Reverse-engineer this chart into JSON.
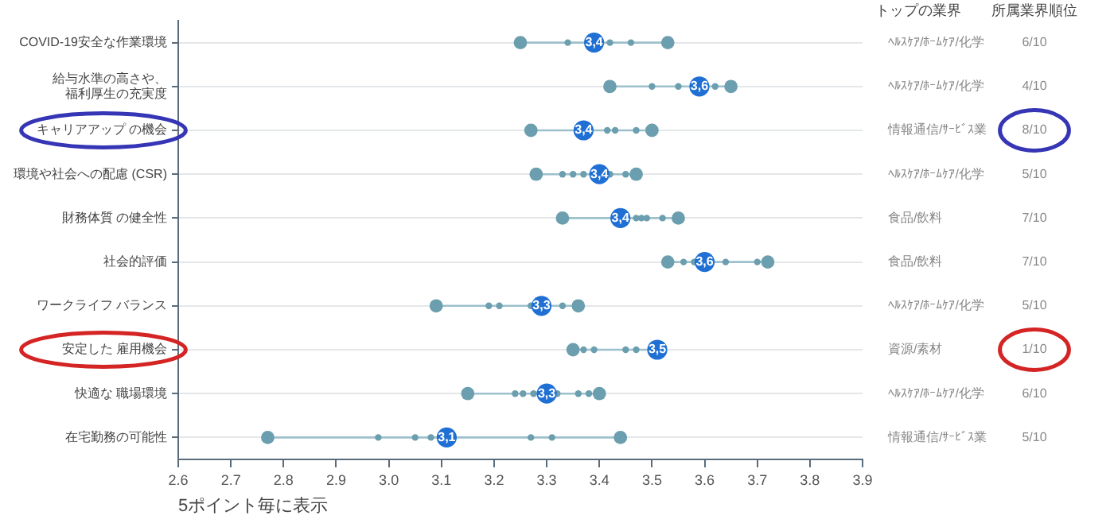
{
  "chart_data": {
    "type": "scatter",
    "orientation": "horizontal",
    "categories": [
      "COVID-19安全な作業環境",
      "給与水準の高さや、福利厚生の充実度",
      "キャリアアップ の機会",
      "環境や社会への配慮 (CSR)",
      "財務体質 の健全性",
      "社会的評価",
      "ワークライフ バランス",
      "安定した 雇用機会",
      "快適な 職場環境",
      "在宅勤務の可能性"
    ],
    "y2_categories": [
      "ﾍﾙｽｹｱ/ﾎｰﾑｹｱ/化学",
      "ﾍﾙｽｹｱ/ﾎｰﾑｹｱ/化学",
      "情報通信/ｻｰﾋﾞｽ業",
      "ﾍﾙｽｹｱ/ﾎｰﾑｹｱ/化学",
      "食品/飲料",
      "食品/飲料",
      "ﾍﾙｽｹｱ/ﾎｰﾑｹｱ/化学",
      "資源/素材",
      "ﾍﾙｽｹｱ/ﾎｰﾑｹｱ/化学",
      "情報通信/ｻｰﾋﾞｽ業"
    ],
    "y2label": "トップの業界",
    "xlabel": "5ポイント毎に表示",
    "xlim": [
      2.6,
      3.9
    ],
    "xticks": [
      2.6,
      2.7,
      2.8,
      2.9,
      {
        "value": 3,
        "label": "3.0"
      },
      3.1,
      3.2,
      3.3,
      3.4,
      3.5,
      3.6,
      3.7,
      3.8,
      3.9
    ],
    "grid": "y",
    "series": [
      {
        "color": "#6b9eae",
        "values": [
          3.25,
          3.42,
          3.27,
          3.28,
          3.33,
          3.53,
          3.09,
          3.35,
          3.15,
          2.77
        ]
      },
      {
        "color": "#6b9eae",
        "values": [
          3.53,
          3.65,
          3.5,
          3.47,
          3.55,
          3.72,
          3.36,
          null,
          3.4,
          3.44
        ]
      },
      {
        "color": "#6b9eae",
        "values": [
          3.34,
          3.5,
          3.415,
          3.33,
          3.47,
          3.56,
          3.19,
          3.37,
          3.24,
          2.98
        ]
      },
      {
        "color": "#6b9eae",
        "values": [
          3.42,
          3.55,
          3.43,
          3.35,
          3.48,
          3.58,
          3.21,
          3.39,
          3.255,
          3.05
        ]
      },
      {
        "color": "#6b9eae",
        "values": [
          3.46,
          3.62,
          3.47,
          3.37,
          3.49,
          3.64,
          3.27,
          3.45,
          3.275,
          3.08
        ]
      },
      {
        "color": "#6b9eae",
        "values": [
          null,
          null,
          null,
          3.42,
          3.52,
          3.7,
          3.33,
          3.47,
          3.32,
          3.27
        ]
      },
      {
        "color": "#6b9eae",
        "values": [
          null,
          null,
          null,
          3.45,
          null,
          null,
          null,
          null,
          3.36,
          3.31
        ]
      },
      {
        "color": "#6b9eae",
        "values": [
          null,
          null,
          null,
          null,
          null,
          null,
          null,
          null,
          3.38,
          null
        ]
      },
      {
        "color": "#1f6fd4",
        "values": [
          3.39,
          3.59,
          3.37,
          3.4,
          3.44,
          3.6,
          3.29,
          3.51,
          3.3,
          3.11
        ],
        "value_labels": [
          "3,4",
          "3,6",
          "3,4",
          "3,4",
          "3,4",
          "3,6",
          "3,3",
          "3,5",
          "3,3",
          "3,1"
        ]
      }
    ],
    "annotations": [
      "所属業界順位",
      "6/10",
      "4/10",
      "8/10",
      "5/10",
      "7/10",
      "7/10",
      "5/10",
      "1/10",
      "6/10",
      "5/10"
    ],
    "legend": false
  }
}
